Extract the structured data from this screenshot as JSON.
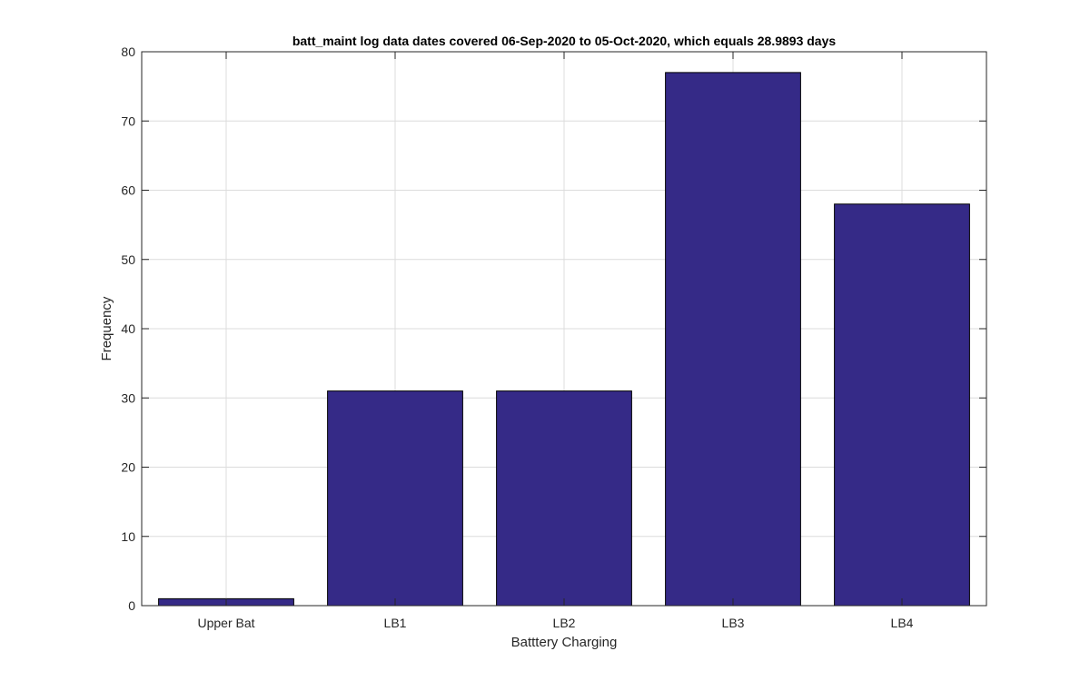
{
  "chart_data": {
    "type": "bar",
    "title": "batt_maint log data  dates covered 06-Sep-2020 to 05-Oct-2020, which equals 28.9893 days",
    "xlabel": "Batttery Charging",
    "ylabel": "Frequency",
    "categories": [
      "Upper Bat",
      "LB1",
      "LB2",
      "LB3",
      "LB4"
    ],
    "values": [
      1,
      31,
      31,
      77,
      58
    ],
    "ylim": [
      0,
      80
    ],
    "yticks": [
      "0",
      "10",
      "20",
      "30",
      "40",
      "50",
      "60",
      "70",
      "80"
    ],
    "grid": true,
    "bar_color": "#352a87",
    "edge_color": "#000000"
  }
}
